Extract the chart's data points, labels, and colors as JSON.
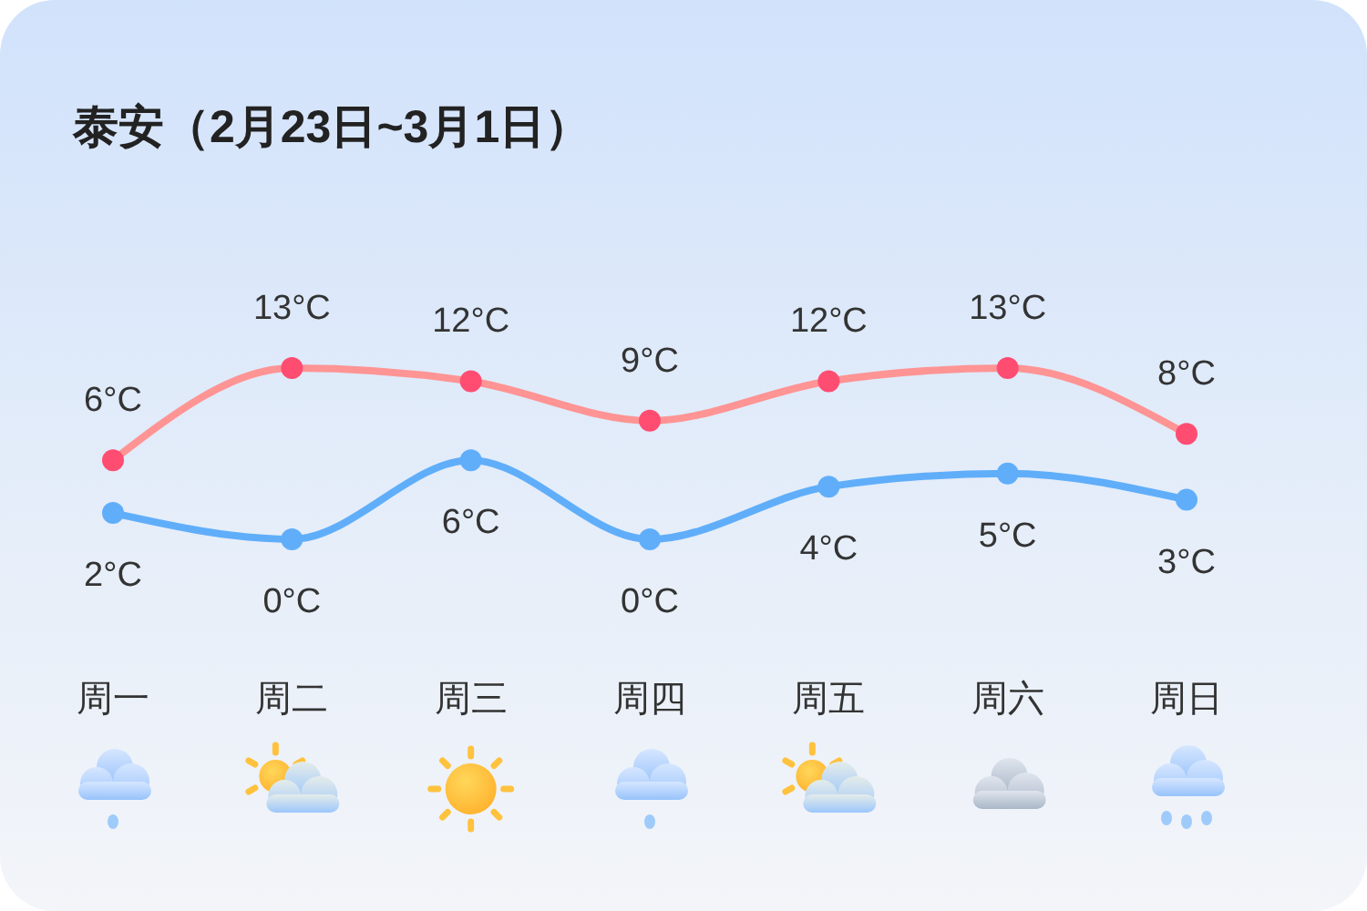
{
  "chart_data": {
    "type": "line",
    "title": "泰安（2月23日~3月1日）",
    "categories": [
      "周一",
      "周二",
      "周三",
      "周四",
      "周五",
      "周六",
      "周日"
    ],
    "marker": "circle",
    "tick_labels": "x",
    "series": [
      {
        "color": "#ff9494",
        "colors": [
          "#ff4d72",
          "#ff4d72",
          "#ff4d72",
          "#ff4d72",
          "#ff4d72",
          "#ff4d72",
          "#ff4d72"
        ],
        "values": [
          6,
          13,
          12,
          9,
          12,
          13,
          8
        ],
        "value_labels": [
          "6°C",
          "13°C",
          "12°C",
          "9°C",
          "12°C",
          "13°C",
          "8°C"
        ]
      },
      {
        "color": "#60aefa",
        "values": [
          2,
          0,
          6,
          0,
          4,
          5,
          3
        ],
        "value_labels": [
          "2°C",
          "0°C",
          "6°C",
          "0°C",
          "4°C",
          "5°C",
          "3°C"
        ]
      }
    ]
  }
}
